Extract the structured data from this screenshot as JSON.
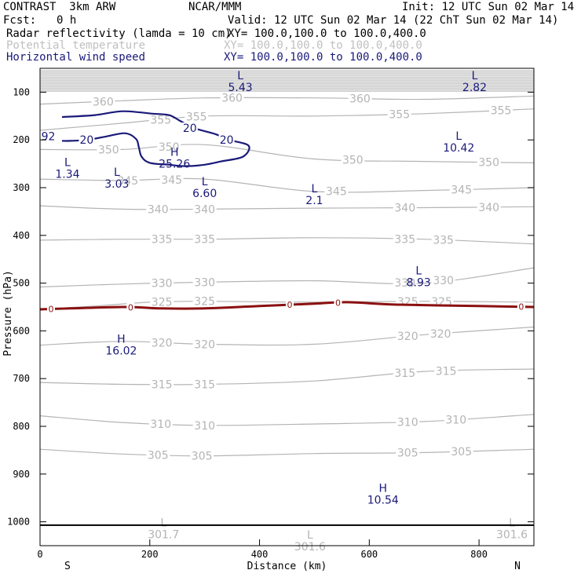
{
  "header": {
    "model": "CONTRAST  3km ARW",
    "center": "NCAR/MMM",
    "init": "Init: 12 UTC Sun 02 Mar 14",
    "fcst_label": "Fcst:",
    "fcst_value": "0 h",
    "valid": "Valid: 12 UTC Sun 02 Mar 14 (22 ChT Sun 02 Mar 14)"
  },
  "legend": [
    {
      "label": "Radar reflectivity (lamda = 10 cm)",
      "xy": "XY= 100.0,100.0 to 100.0,400.0",
      "color": "#000000"
    },
    {
      "label": "Potential temperature",
      "xy": "XY= 100.0,100.0 to 100.0,400.0",
      "color": "#c0c0c0"
    },
    {
      "label": "Horizontal wind speed",
      "xy": "XY= 100.0,100.0 to 100.0,400.0",
      "color": "#1a1a7a"
    }
  ],
  "chart_data": {
    "type": "line",
    "xlabel": "Distance (km)",
    "ylabel": "Pressure (hPa)",
    "xlim": [
      0,
      900
    ],
    "ylim": [
      1050,
      50
    ],
    "x_ticks": [
      "0",
      "200",
      "400",
      "600",
      "800"
    ],
    "y_ticks": [
      "100",
      "200",
      "300",
      "400",
      "500",
      "600",
      "700",
      "800",
      "900",
      "1000"
    ],
    "endpoint_labels": {
      "left": "S",
      "right": "N"
    },
    "colors": {
      "theta": "#b4b4b4",
      "wind": "#1a1a7a",
      "zero": "#8b1010",
      "grid": "#000000"
    },
    "theta_contours": [
      {
        "level": 305,
        "points": [
          [
            0,
            848
          ],
          [
            150,
            858
          ],
          [
            300,
            862
          ],
          [
            500,
            857
          ],
          [
            700,
            855
          ],
          [
            900,
            848
          ]
        ],
        "labels": [
          [
            215,
            "305"
          ],
          [
            295,
            "305"
          ],
          [
            670,
            "305"
          ],
          [
            768,
            "305"
          ]
        ]
      },
      {
        "level": 310,
        "points": [
          [
            0,
            778
          ],
          [
            150,
            792
          ],
          [
            300,
            798
          ],
          [
            500,
            795
          ],
          [
            700,
            790
          ],
          [
            900,
            775
          ]
        ],
        "labels": [
          [
            220,
            "310"
          ],
          [
            300,
            "310"
          ],
          [
            670,
            "310"
          ],
          [
            758,
            "310"
          ]
        ]
      },
      {
        "level": 315,
        "points": [
          [
            0,
            708
          ],
          [
            150,
            712
          ],
          [
            300,
            712
          ],
          [
            500,
            705
          ],
          [
            700,
            685
          ],
          [
            900,
            680
          ]
        ],
        "labels": [
          [
            222,
            "315"
          ],
          [
            300,
            "315"
          ],
          [
            665,
            "315"
          ],
          [
            740,
            "315"
          ]
        ]
      },
      {
        "level": 320,
        "points": [
          [
            0,
            630
          ],
          [
            150,
            622
          ],
          [
            300,
            628
          ],
          [
            500,
            628
          ],
          [
            700,
            608
          ],
          [
            900,
            592
          ]
        ],
        "labels": [
          [
            222,
            "320"
          ],
          [
            300,
            "320"
          ],
          [
            670,
            "320"
          ],
          [
            730,
            "320"
          ]
        ]
      },
      {
        "level": 325,
        "points": [
          [
            0,
            555
          ],
          [
            100,
            548
          ],
          [
            200,
            540
          ],
          [
            300,
            538
          ],
          [
            500,
            540
          ],
          [
            700,
            538
          ],
          [
            900,
            540
          ]
        ],
        "labels": [
          [
            222,
            "325"
          ],
          [
            300,
            "325"
          ],
          [
            670,
            "325"
          ],
          [
            732,
            "325"
          ]
        ]
      },
      {
        "level": 330,
        "points": [
          [
            0,
            508
          ],
          [
            150,
            502
          ],
          [
            300,
            498
          ],
          [
            500,
            495
          ],
          [
            700,
            500
          ],
          [
            900,
            468
          ]
        ],
        "labels": [
          [
            222,
            "330"
          ],
          [
            300,
            "330"
          ],
          [
            665,
            "330"
          ],
          [
            735,
            "330"
          ]
        ]
      },
      {
        "level": 335,
        "points": [
          [
            0,
            410
          ],
          [
            150,
            408
          ],
          [
            300,
            408
          ],
          [
            500,
            405
          ],
          [
            700,
            408
          ],
          [
            900,
            418
          ]
        ],
        "labels": [
          [
            222,
            "335"
          ],
          [
            300,
            "335"
          ],
          [
            665,
            "335"
          ],
          [
            735,
            "335"
          ]
        ]
      },
      {
        "level": 340,
        "points": [
          [
            0,
            338
          ],
          [
            150,
            345
          ],
          [
            300,
            345
          ],
          [
            500,
            343
          ],
          [
            700,
            342
          ],
          [
            900,
            340
          ]
        ],
        "labels": [
          [
            215,
            "340"
          ],
          [
            300,
            "340"
          ],
          [
            665,
            "340"
          ],
          [
            818,
            "340"
          ]
        ]
      },
      {
        "level": 345,
        "points": [
          [
            0,
            282
          ],
          [
            150,
            285
          ],
          [
            300,
            282
          ],
          [
            500,
            308
          ],
          [
            700,
            306
          ],
          [
            900,
            300
          ]
        ],
        "labels": [
          [
            160,
            "345"
          ],
          [
            240,
            "345"
          ],
          [
            540,
            "345"
          ],
          [
            768,
            "345"
          ]
        ]
      },
      {
        "level": 350,
        "points": [
          [
            0,
            220
          ],
          [
            150,
            220
          ],
          [
            300,
            210
          ],
          [
            500,
            240
          ],
          [
            700,
            245
          ],
          [
            900,
            248
          ]
        ],
        "labels": [
          [
            125,
            "350"
          ],
          [
            235,
            "350"
          ],
          [
            570,
            "350"
          ],
          [
            818,
            "350"
          ]
        ]
      },
      {
        "level": 355,
        "points": [
          [
            0,
            180
          ],
          [
            150,
            165
          ],
          [
            300,
            150
          ],
          [
            500,
            150
          ],
          [
            700,
            145
          ],
          [
            900,
            135
          ]
        ],
        "labels": [
          [
            220,
            "355"
          ],
          [
            285,
            "355"
          ],
          [
            655,
            "355"
          ],
          [
            840,
            "355"
          ]
        ]
      },
      {
        "level": 360,
        "points": [
          [
            0,
            125
          ],
          [
            150,
            118
          ],
          [
            300,
            112
          ],
          [
            500,
            112
          ],
          [
            700,
            115
          ],
          [
            900,
            108
          ]
        ],
        "labels": [
          [
            115,
            "360"
          ],
          [
            350,
            "360"
          ],
          [
            583,
            "360"
          ]
        ]
      }
    ],
    "wind_contours": [
      {
        "level": 20,
        "points": [
          [
            40,
            152
          ],
          [
            100,
            148
          ],
          [
            150,
            140
          ],
          [
            205,
            145
          ],
          [
            235,
            148
          ],
          [
            255,
            160
          ],
          [
            280,
            175
          ],
          [
            320,
            188
          ],
          [
            345,
            200
          ],
          [
            380,
            212
          ],
          [
            370,
            235
          ],
          [
            330,
            245
          ],
          [
            300,
            252
          ],
          [
            265,
            255
          ],
          [
            235,
            252
          ],
          [
            200,
            248
          ],
          [
            185,
            235
          ],
          [
            180,
            215
          ],
          [
            175,
            198
          ],
          [
            155,
            186
          ],
          [
            120,
            193
          ],
          [
            85,
            200
          ],
          [
            55,
            202
          ],
          [
            40,
            202
          ]
        ],
        "labels": [
          [
            85,
            "20"
          ],
          [
            273,
            "20"
          ],
          [
            340,
            "20"
          ]
        ]
      }
    ],
    "wind_edge_label": {
      "x": 15,
      "p": 192,
      "text": "92"
    },
    "zero_line": {
      "level": 0,
      "points": [
        [
          0,
          555
        ],
        [
          150,
          550
        ],
        [
          220,
          553
        ],
        [
          300,
          553
        ],
        [
          400,
          548
        ],
        [
          500,
          543
        ],
        [
          560,
          540
        ],
        [
          650,
          545
        ],
        [
          800,
          548
        ],
        [
          900,
          550
        ]
      ],
      "labels": [
        [
          20,
          "0"
        ],
        [
          165,
          "0"
        ],
        [
          455,
          "0"
        ],
        [
          543,
          "0"
        ],
        [
          877,
          "0"
        ]
      ]
    },
    "extrema": [
      {
        "type": "L",
        "value": "5.43",
        "x": 365,
        "p": 73,
        "color": "#1a1a7a"
      },
      {
        "type": "L",
        "value": "2.82",
        "x": 792,
        "p": 73,
        "color": "#1a1a7a"
      },
      {
        "type": "L",
        "value": "10.42",
        "x": 763,
        "p": 200,
        "color": "#1a1a7a"
      },
      {
        "type": "H",
        "value": "25.26",
        "x": 245,
        "p": 233,
        "color": "#1a1a7a"
      },
      {
        "type": "L",
        "value": "1.34",
        "x": 50,
        "p": 255,
        "color": "#1a1a7a"
      },
      {
        "type": "L",
        "value": "3.03",
        "x": 140,
        "p": 275,
        "color": "#1a1a7a"
      },
      {
        "type": "L",
        "value": "6.60",
        "x": 300,
        "p": 295,
        "color": "#1a1a7a"
      },
      {
        "type": "L",
        "value": "2.1",
        "x": 500,
        "p": 310,
        "color": "#1a1a7a"
      },
      {
        "type": "L",
        "value": "8.93",
        "x": 690,
        "p": 482,
        "color": "#1a1a7a"
      },
      {
        "type": "H",
        "value": "16.02",
        "x": 148,
        "p": 625,
        "color": "#1a1a7a"
      },
      {
        "type": "H",
        "value": "10.54",
        "x": 625,
        "p": 937,
        "color": "#1a1a7a"
      },
      {
        "type": "L",
        "value": "301.7",
        "x": 225,
        "p": 1010,
        "color": "#b4b4b4"
      },
      {
        "type": "L",
        "value": "301.6",
        "x": 492,
        "p": 1035,
        "color": "#b4b4b4"
      },
      {
        "type": "L",
        "value": "301.6",
        "x": 860,
        "p": 1010,
        "color": "#b4b4b4"
      }
    ],
    "surface_line_p": 1007
  }
}
